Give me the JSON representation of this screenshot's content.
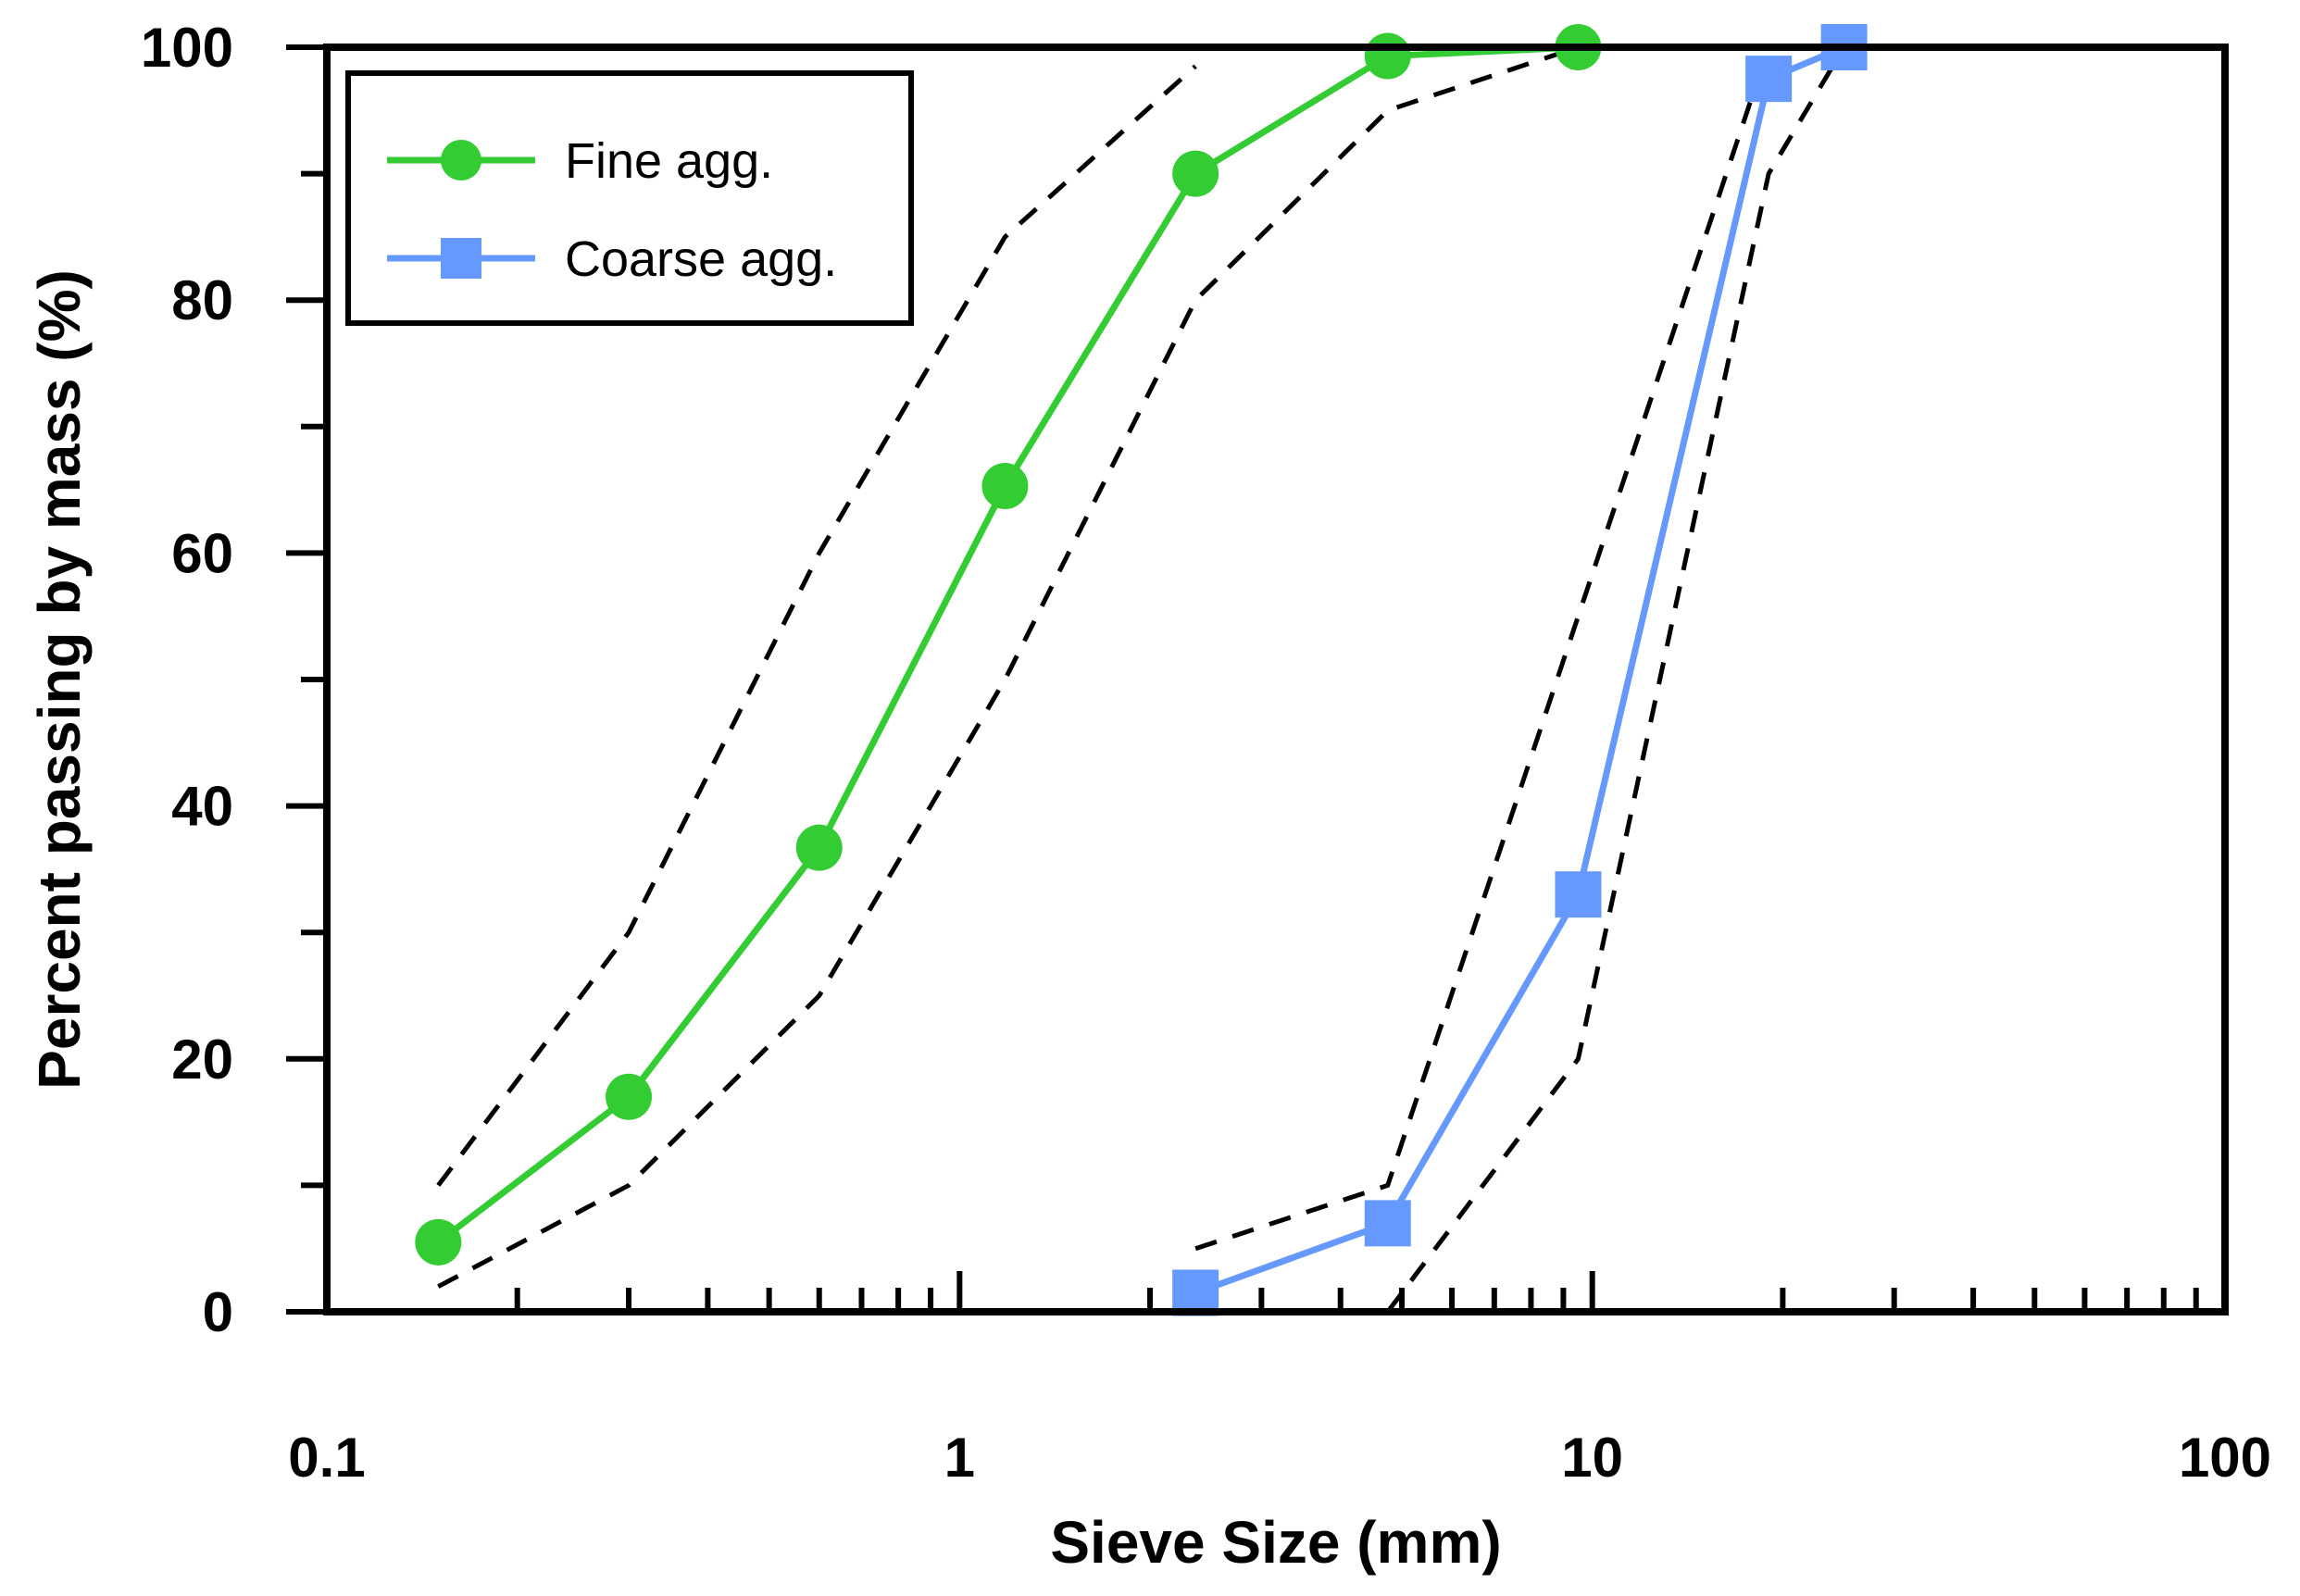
{
  "chart_data": {
    "type": "line",
    "xscale": "log",
    "xlabel": "Sieve Size (mm)",
    "ylabel": "Percent passing by mass (%)",
    "xlim": [
      0.1,
      100
    ],
    "ylim": [
      0,
      100
    ],
    "x_tick_labels": [
      "0.1",
      "1",
      "10",
      "100"
    ],
    "y_tick_labels": [
      "0",
      "20",
      "40",
      "60",
      "80",
      "100"
    ],
    "legend_position": "top-left",
    "series": [
      {
        "name": "Fine agg.",
        "color": "#33cc33",
        "marker": "circle",
        "x": [
          0.15,
          0.3,
          0.6,
          1.18,
          2.36,
          4.75,
          9.5
        ],
        "y": [
          5.5,
          17,
          36.7,
          65.3,
          90,
          99.3,
          100
        ]
      },
      {
        "name": "Coarse agg.",
        "color": "#6699ff",
        "marker": "square",
        "x": [
          2.36,
          4.75,
          9.5,
          19,
          25
        ],
        "y": [
          1.5,
          7,
          33,
          97.5,
          100
        ]
      }
    ],
    "limit_lines": [
      {
        "name": "fine-upper-limit",
        "x": [
          0.15,
          0.3,
          0.6,
          1.18,
          2.36
        ],
        "y": [
          10,
          30,
          60,
          85,
          98.5
        ]
      },
      {
        "name": "fine-lower-limit",
        "x": [
          0.15,
          0.3,
          0.6,
          1.18,
          2.36,
          4.75,
          9.5
        ],
        "y": [
          2,
          10,
          25,
          50,
          80,
          95,
          100
        ]
      },
      {
        "name": "coarse-upper-limit",
        "x": [
          2.36,
          4.75,
          9.5,
          19,
          25
        ],
        "y": [
          5,
          10,
          55,
          100,
          100
        ]
      },
      {
        "name": "coarse-lower-limit",
        "x": [
          4.75,
          9.5,
          19,
          25
        ],
        "y": [
          0,
          20,
          90,
          100
        ]
      }
    ],
    "limit_line_color": "#000000"
  }
}
